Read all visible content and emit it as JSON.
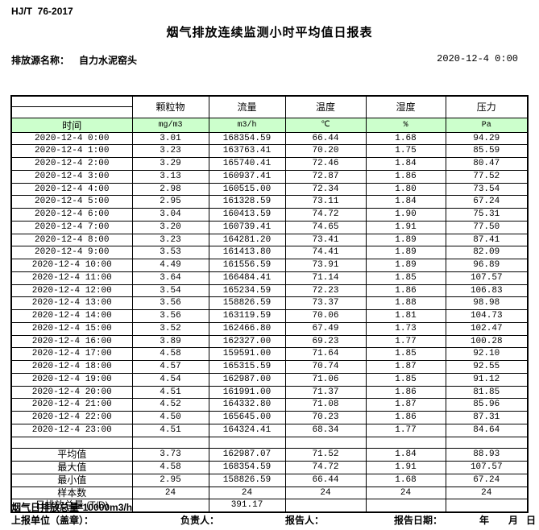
{
  "page": {
    "doc_code": "HJ/T  76-2017",
    "title": "烟气排放连续监测小时平均值日报表",
    "source_label": "排放源名称：",
    "source_name": "自力水泥窑头",
    "datetime": "2020-12-4 0:00"
  },
  "colors": {
    "header_fill": "#ccffcc",
    "border": "#000000"
  },
  "table": {
    "time_header": "时间",
    "pollutant_headers": [
      "颗粒物",
      "流量",
      "温度",
      "湿度",
      "压力"
    ],
    "units": [
      "mg/m3",
      "m3/h",
      "℃",
      "%",
      "Pa"
    ],
    "rows": [
      [
        "2020-12-4 0:00",
        "3.01",
        "168354.59",
        "66.44",
        "1.68",
        "94.29"
      ],
      [
        "2020-12-4 1:00",
        "3.23",
        "163763.41",
        "70.20",
        "1.75",
        "85.59"
      ],
      [
        "2020-12-4 2:00",
        "3.29",
        "165740.41",
        "72.46",
        "1.84",
        "80.47"
      ],
      [
        "2020-12-4 3:00",
        "3.13",
        "160937.41",
        "72.87",
        "1.86",
        "77.52"
      ],
      [
        "2020-12-4 4:00",
        "2.98",
        "160515.00",
        "72.34",
        "1.80",
        "73.54"
      ],
      [
        "2020-12-4 5:00",
        "2.95",
        "161328.59",
        "73.11",
        "1.84",
        "67.24"
      ],
      [
        "2020-12-4 6:00",
        "3.04",
        "160413.59",
        "74.72",
        "1.90",
        "75.31"
      ],
      [
        "2020-12-4 7:00",
        "3.20",
        "160739.41",
        "74.65",
        "1.91",
        "77.50"
      ],
      [
        "2020-12-4 8:00",
        "3.23",
        "164281.20",
        "73.41",
        "1.89",
        "87.41"
      ],
      [
        "2020-12-4 9:00",
        "3.53",
        "161413.80",
        "74.41",
        "1.89",
        "82.09"
      ],
      [
        "2020-12-4 10:00",
        "4.49",
        "161556.59",
        "73.91",
        "1.89",
        "96.89"
      ],
      [
        "2020-12-4 11:00",
        "3.64",
        "166484.41",
        "71.14",
        "1.85",
        "107.57"
      ],
      [
        "2020-12-4 12:00",
        "3.54",
        "165234.59",
        "72.23",
        "1.86",
        "106.83"
      ],
      [
        "2020-12-4 13:00",
        "3.56",
        "158826.59",
        "73.37",
        "1.88",
        "98.98"
      ],
      [
        "2020-12-4 14:00",
        "3.56",
        "163119.59",
        "70.06",
        "1.81",
        "104.73"
      ],
      [
        "2020-12-4 15:00",
        "3.52",
        "162466.80",
        "67.49",
        "1.73",
        "102.47"
      ],
      [
        "2020-12-4 16:00",
        "3.89",
        "162327.00",
        "69.23",
        "1.77",
        "100.28"
      ],
      [
        "2020-12-4 17:00",
        "4.58",
        "159591.00",
        "71.64",
        "1.85",
        "92.10"
      ],
      [
        "2020-12-4 18:00",
        "4.57",
        "165315.59",
        "70.74",
        "1.87",
        "92.55"
      ],
      [
        "2020-12-4 19:00",
        "4.54",
        "162987.00",
        "71.06",
        "1.85",
        "91.12"
      ],
      [
        "2020-12-4 20:00",
        "4.51",
        "161991.00",
        "71.37",
        "1.86",
        "81.85"
      ],
      [
        "2020-12-4 21:00",
        "4.52",
        "164332.80",
        "71.08",
        "1.87",
        "85.96"
      ],
      [
        "2020-12-4 22:00",
        "4.50",
        "165645.00",
        "70.23",
        "1.86",
        "87.31"
      ],
      [
        "2020-12-4 23:00",
        "4.51",
        "164324.41",
        "68.34",
        "1.77",
        "84.64"
      ]
    ],
    "summary": [
      [
        "平均值",
        "3.73",
        "162987.07",
        "71.52",
        "1.84",
        "88.93"
      ],
      [
        "最大值",
        "4.58",
        "168354.59",
        "74.72",
        "1.91",
        "107.57"
      ],
      [
        "最小值",
        "2.95",
        "158826.59",
        "66.44",
        "1.68",
        "67.24"
      ],
      [
        "样本数",
        "24",
        "24",
        "24",
        "24",
        "24"
      ],
      [
        "日排放总量 (T/D)",
        "",
        "391.17",
        "",
        "",
        ""
      ]
    ]
  },
  "footer": {
    "note": "烟气日排放总量*10000m3/h",
    "report_unit": "上报单位（盖章）：",
    "responsible": "负责人：",
    "reporter": "报告人：",
    "report_date": "报告日期：",
    "year": "年",
    "month": "月",
    "day": "日"
  }
}
